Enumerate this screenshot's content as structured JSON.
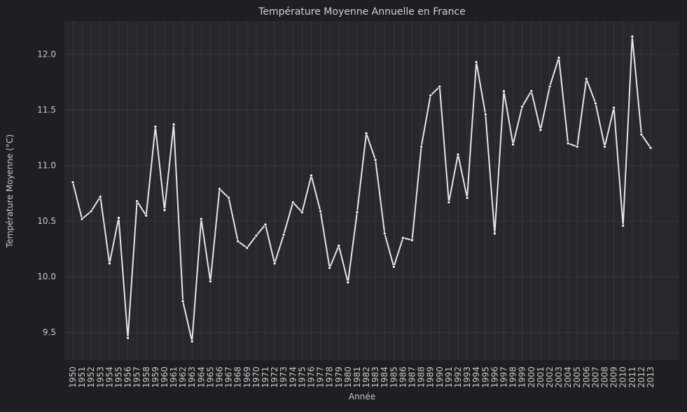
{
  "chart_data": {
    "type": "line",
    "title": "Température Moyenne Annuelle en France",
    "xlabel": "Année",
    "ylabel": "Température Moyenne (°C)",
    "ylim": [
      9.25,
      12.3
    ],
    "yticks": [
      "9.5",
      "10.0",
      "10.5",
      "11.0",
      "11.5",
      "12.0"
    ],
    "grid": true,
    "categories": [
      "1950",
      "1951",
      "1952",
      "1953",
      "1954",
      "1955",
      "1956",
      "1957",
      "1958",
      "1959",
      "1960",
      "1961",
      "1962",
      "1963",
      "1964",
      "1965",
      "1966",
      "1967",
      "1968",
      "1969",
      "1970",
      "1971",
      "1972",
      "1973",
      "1974",
      "1975",
      "1976",
      "1977",
      "1978",
      "1979",
      "1980",
      "1981",
      "1982",
      "1983",
      "1984",
      "1985",
      "1986",
      "1987",
      "1988",
      "1989",
      "1990",
      "1991",
      "1992",
      "1993",
      "1994",
      "1995",
      "1996",
      "1997",
      "1998",
      "1999",
      "2000",
      "2001",
      "2002",
      "2003",
      "2004",
      "2005",
      "2006",
      "2007",
      "2008",
      "2009",
      "2010",
      "2011",
      "2012",
      "2013"
    ],
    "series": [
      {
        "values": [
          10.85,
          10.52,
          10.59,
          10.72,
          10.12,
          10.53,
          9.45,
          10.68,
          10.55,
          11.35,
          10.6,
          11.37,
          9.78,
          9.42,
          10.52,
          9.96,
          10.79,
          10.71,
          10.32,
          10.26,
          10.37,
          10.47,
          10.12,
          10.38,
          10.67,
          10.58,
          10.91,
          10.59,
          10.08,
          10.28,
          9.95,
          10.58,
          11.29,
          11.05,
          10.39,
          10.09,
          10.35,
          10.33,
          11.17,
          11.63,
          11.71,
          10.67,
          11.1,
          10.71,
          11.93,
          11.46,
          10.39,
          11.67,
          11.19,
          11.53,
          11.67,
          11.32,
          11.71,
          11.97,
          11.2,
          11.17,
          11.78,
          11.56,
          11.17,
          11.52,
          10.46,
          12.16,
          11.28,
          11.16
        ],
        "color": "#e6e6e6"
      }
    ],
    "colors": {
      "background": "#1e1f22",
      "plot_background": "#27282d",
      "grid": "#3a3b40",
      "line": "#e6e6e6",
      "text": "#c8c8c8"
    }
  }
}
